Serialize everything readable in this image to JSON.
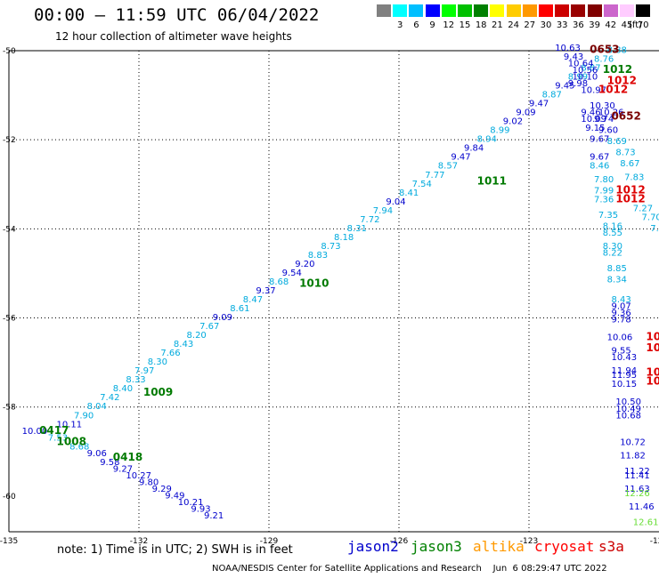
{
  "header": {
    "title": "00:00 – 11:59 UTC 06/04/2022",
    "subtitle": "12 hour collection of altimeter wave heights"
  },
  "color_scale": {
    "unit": "(ft)",
    "swatches": [
      {
        "color": "#808080",
        "label": ""
      },
      {
        "color": "#00ffff",
        "label": "3"
      },
      {
        "color": "#00bfff",
        "label": "6"
      },
      {
        "color": "#0000ff",
        "label": "9"
      },
      {
        "color": "#00ff00",
        "label": "12"
      },
      {
        "color": "#00c000",
        "label": "15"
      },
      {
        "color": "#008000",
        "label": "18"
      },
      {
        "color": "#ffff00",
        "label": "21"
      },
      {
        "color": "#ffcc00",
        "label": "24"
      },
      {
        "color": "#ff9900",
        "label": "27"
      },
      {
        "color": "#ff0000",
        "label": "30"
      },
      {
        "color": "#cc0000",
        "label": "33"
      },
      {
        "color": "#990000",
        "label": "36"
      },
      {
        "color": "#800000",
        "label": "39"
      },
      {
        "color": "#cc66cc",
        "label": "42"
      },
      {
        "color": "#ffccff",
        "label": "45"
      },
      {
        "color": "#000000",
        "label": "70"
      }
    ]
  },
  "axes": {
    "lat_labels": [
      "-50",
      "-52",
      "-54",
      "-56",
      "-58",
      "-60"
    ],
    "lon_labels": [
      "-135",
      "-132",
      "-129",
      "-126",
      "-123",
      "-120"
    ]
  },
  "note": "note: 1) Time is in UTC; 2) SWH is in feet",
  "satellite_legend": [
    {
      "name": "jason2",
      "color": "#0000cc"
    },
    {
      "name": "jason3",
      "color": "#008000"
    },
    {
      "name": "altika",
      "color": "#ff9900"
    },
    {
      "name": "cryosat",
      "color": "#ff0000"
    },
    {
      "name": "s3a",
      "color": "#cc0000"
    }
  ],
  "footer": "NOAA/NESDIS Center for Satellite Applications and Research    Jun  6 08:29:47 UTC 2022",
  "map_data": {
    "colors": {
      "cyan": "#00aadd",
      "blue": "#0000cc",
      "green": "#007a00",
      "red": "#dd0000",
      "maroon": "#7a0000",
      "lime": "#66dd33"
    },
    "wave_heights": [
      {
        "v": "10.00",
        "lon": -134.7,
        "lat": -58.6,
        "c": "blue"
      },
      {
        "v": "10.11",
        "lon": -133.9,
        "lat": -58.45,
        "c": "blue"
      },
      {
        "v": "7.90",
        "lon": -133.5,
        "lat": -58.25,
        "c": "cyan"
      },
      {
        "v": "8.04",
        "lon": -133.2,
        "lat": -58.05,
        "c": "cyan"
      },
      {
        "v": "7.42",
        "lon": -132.9,
        "lat": -57.85,
        "c": "cyan"
      },
      {
        "v": "8.40",
        "lon": -132.6,
        "lat": -57.65,
        "c": "cyan"
      },
      {
        "v": "8.33",
        "lon": -132.3,
        "lat": -57.45,
        "c": "cyan"
      },
      {
        "v": "7.97",
        "lon": -132.1,
        "lat": -57.25,
        "c": "cyan"
      },
      {
        "v": "8.30",
        "lon": -131.8,
        "lat": -57.05,
        "c": "cyan"
      },
      {
        "v": "7.66",
        "lon": -131.5,
        "lat": -56.85,
        "c": "cyan"
      },
      {
        "v": "8.43",
        "lon": -131.2,
        "lat": -56.65,
        "c": "cyan"
      },
      {
        "v": "8.20",
        "lon": -130.9,
        "lat": -56.45,
        "c": "cyan"
      },
      {
        "v": "7.67",
        "lon": -130.6,
        "lat": -56.25,
        "c": "cyan"
      },
      {
        "v": "9.09",
        "lon": -130.3,
        "lat": -56.05,
        "c": "blue"
      },
      {
        "v": "8.61",
        "lon": -129.9,
        "lat": -55.85,
        "c": "cyan"
      },
      {
        "v": "8.47",
        "lon": -129.6,
        "lat": -55.65,
        "c": "cyan"
      },
      {
        "v": "9.37",
        "lon": -129.3,
        "lat": -55.45,
        "c": "blue"
      },
      {
        "v": "8.68",
        "lon": -129.0,
        "lat": -55.25,
        "c": "cyan"
      },
      {
        "v": "9.54",
        "lon": -128.7,
        "lat": -55.05,
        "c": "blue"
      },
      {
        "v": "9.20",
        "lon": -128.4,
        "lat": -54.85,
        "c": "blue"
      },
      {
        "v": "8.83",
        "lon": -128.1,
        "lat": -54.65,
        "c": "cyan"
      },
      {
        "v": "8.73",
        "lon": -127.8,
        "lat": -54.45,
        "c": "cyan"
      },
      {
        "v": "8.18",
        "lon": -127.5,
        "lat": -54.25,
        "c": "cyan"
      },
      {
        "v": "8.31",
        "lon": -127.2,
        "lat": -54.05,
        "c": "cyan"
      },
      {
        "v": "7.72",
        "lon": -126.9,
        "lat": -53.85,
        "c": "cyan"
      },
      {
        "v": "7.94",
        "lon": -126.6,
        "lat": -53.65,
        "c": "cyan"
      },
      {
        "v": "9.04",
        "lon": -126.3,
        "lat": -53.45,
        "c": "blue"
      },
      {
        "v": "8.41",
        "lon": -126.0,
        "lat": -53.25,
        "c": "cyan"
      },
      {
        "v": "7.54",
        "lon": -125.7,
        "lat": -53.05,
        "c": "cyan"
      },
      {
        "v": "7.77",
        "lon": -125.4,
        "lat": -52.85,
        "c": "cyan"
      },
      {
        "v": "8.57",
        "lon": -125.1,
        "lat": -52.65,
        "c": "cyan"
      },
      {
        "v": "9.47",
        "lon": -124.8,
        "lat": -52.45,
        "c": "blue"
      },
      {
        "v": "9.84",
        "lon": -124.5,
        "lat": -52.25,
        "c": "blue"
      },
      {
        "v": "8.94",
        "lon": -124.2,
        "lat": -52.05,
        "c": "cyan"
      },
      {
        "v": "8.99",
        "lon": -123.9,
        "lat": -51.85,
        "c": "cyan"
      },
      {
        "v": "9.02",
        "lon": -123.6,
        "lat": -51.65,
        "c": "blue"
      },
      {
        "v": "9.09",
        "lon": -123.3,
        "lat": -51.45,
        "c": "blue"
      },
      {
        "v": "9.47",
        "lon": -123.0,
        "lat": -51.25,
        "c": "blue"
      },
      {
        "v": "8.87",
        "lon": -122.7,
        "lat": -51.05,
        "c": "cyan"
      },
      {
        "v": "9.45",
        "lon": -122.4,
        "lat": -50.85,
        "c": "blue"
      },
      {
        "v": "8.99",
        "lon": -122.1,
        "lat": -50.65,
        "c": "cyan"
      },
      {
        "v": "8.87",
        "lon": -121.8,
        "lat": -50.45,
        "c": "cyan"
      },
      {
        "v": "8.76",
        "lon": -121.5,
        "lat": -50.25,
        "c": "cyan"
      },
      {
        "v": "8.88",
        "lon": -121.2,
        "lat": -50.05,
        "c": "cyan"
      },
      {
        "v": "7.53",
        "lon": -134.1,
        "lat": -58.75,
        "c": "cyan"
      },
      {
        "v": "8.68",
        "lon": -133.6,
        "lat": -58.95,
        "c": "cyan"
      },
      {
        "v": "9.06",
        "lon": -133.2,
        "lat": -59.1,
        "c": "blue"
      },
      {
        "v": "9.58",
        "lon": -132.9,
        "lat": -59.3,
        "c": "blue"
      },
      {
        "v": "9.27",
        "lon": -132.6,
        "lat": -59.45,
        "c": "blue"
      },
      {
        "v": "10.27",
        "lon": -132.3,
        "lat": -59.6,
        "c": "blue"
      },
      {
        "v": "9.80",
        "lon": -132.0,
        "lat": -59.75,
        "c": "blue"
      },
      {
        "v": "9.29",
        "lon": -131.7,
        "lat": -59.9,
        "c": "blue"
      },
      {
        "v": "9.49",
        "lon": -131.4,
        "lat": -60.05,
        "c": "blue"
      },
      {
        "v": "10.21",
        "lon": -131.1,
        "lat": -60.2,
        "c": "blue"
      },
      {
        "v": "9.93",
        "lon": -130.8,
        "lat": -60.35,
        "c": "blue"
      },
      {
        "v": "9.21",
        "lon": -130.5,
        "lat": -60.5,
        "c": "blue"
      },
      {
        "v": "10.63",
        "lon": -122.4,
        "lat": -50.0,
        "c": "blue"
      },
      {
        "v": "9.43",
        "lon": -122.2,
        "lat": -50.2,
        "c": "blue"
      },
      {
        "v": "10.64",
        "lon": -122.1,
        "lat": -50.35,
        "c": "blue"
      },
      {
        "v": "10.56",
        "lon": -122.0,
        "lat": -50.5,
        "c": "blue"
      },
      {
        "v": "10.10",
        "lon": -122.0,
        "lat": -50.65,
        "c": "blue"
      },
      {
        "v": "9.98",
        "lon": -122.1,
        "lat": -50.8,
        "c": "blue"
      },
      {
        "v": "10.97",
        "lon": -121.8,
        "lat": -50.95,
        "c": "blue"
      },
      {
        "v": "10.30",
        "lon": -121.6,
        "lat": -51.3,
        "c": "blue"
      },
      {
        "v": "9.46",
        "lon": -121.8,
        "lat": -51.45,
        "c": "blue"
      },
      {
        "v": "10.26",
        "lon": -121.4,
        "lat": -51.45,
        "c": "blue"
      },
      {
        "v": "10.09",
        "lon": -121.8,
        "lat": -51.6,
        "c": "blue"
      },
      {
        "v": "9.74",
        "lon": -121.5,
        "lat": -51.6,
        "c": "blue"
      },
      {
        "v": "9.15",
        "lon": -121.7,
        "lat": -51.8,
        "c": "blue"
      },
      {
        "v": "9.60",
        "lon": -121.4,
        "lat": -51.85,
        "c": "blue"
      },
      {
        "v": "9.67",
        "lon": -121.6,
        "lat": -52.05,
        "c": "blue"
      },
      {
        "v": "8.69",
        "lon": -121.2,
        "lat": -52.1,
        "c": "cyan"
      },
      {
        "v": "8.73",
        "lon": -121.0,
        "lat": -52.35,
        "c": "cyan"
      },
      {
        "v": "9.67",
        "lon": -121.6,
        "lat": -52.45,
        "c": "blue"
      },
      {
        "v": "8.67",
        "lon": -120.9,
        "lat": -52.6,
        "c": "cyan"
      },
      {
        "v": "8.46",
        "lon": -121.6,
        "lat": -52.65,
        "c": "cyan"
      },
      {
        "v": "7.83",
        "lon": -120.8,
        "lat": -52.9,
        "c": "cyan"
      },
      {
        "v": "7.80",
        "lon": -121.5,
        "lat": -52.95,
        "c": "cyan"
      },
      {
        "v": "7.99",
        "lon": -121.5,
        "lat": -53.2,
        "c": "cyan"
      },
      {
        "v": "7.36",
        "lon": -121.5,
        "lat": -53.4,
        "c": "cyan"
      },
      {
        "v": "7.27",
        "lon": -120.6,
        "lat": -53.6,
        "c": "cyan"
      },
      {
        "v": "7.35",
        "lon": -121.4,
        "lat": -53.75,
        "c": "cyan"
      },
      {
        "v": "7.70",
        "lon": -120.4,
        "lat": -53.8,
        "c": "cyan"
      },
      {
        "v": "8.16",
        "lon": -121.3,
        "lat": -54.0,
        "c": "cyan"
      },
      {
        "v": "7.64",
        "lon": -120.2,
        "lat": -54.05,
        "c": "cyan"
      },
      {
        "v": "8.55",
        "lon": -121.3,
        "lat": -54.15,
        "c": "cyan"
      },
      {
        "v": "8.40",
        "lon": -120.0,
        "lat": -54.3,
        "c": "cyan"
      },
      {
        "v": "8.30",
        "lon": -121.3,
        "lat": -54.45,
        "c": "cyan"
      },
      {
        "v": "8.28",
        "lon": -119.8,
        "lat": -54.55,
        "c": "cyan"
      },
      {
        "v": "8.22",
        "lon": -121.3,
        "lat": -54.6,
        "c": "cyan"
      },
      {
        "v": "8.04",
        "lon": -119.6,
        "lat": -54.8,
        "c": "cyan"
      },
      {
        "v": "8.85",
        "lon": -121.2,
        "lat": -54.95,
        "c": "cyan"
      },
      {
        "v": "8.39",
        "lon": -119.4,
        "lat": -55.05,
        "c": "cyan"
      },
      {
        "v": "8.34",
        "lon": -121.2,
        "lat": -55.2,
        "c": "cyan"
      },
      {
        "v": "7.49",
        "lon": -119.3,
        "lat": -55.3,
        "c": "cyan"
      },
      {
        "v": "8.43",
        "lon": -121.1,
        "lat": -55.65,
        "c": "cyan"
      },
      {
        "v": "10",
        "lon": -119.2,
        "lat": -55.75,
        "c": "blue"
      },
      {
        "v": "9.07",
        "lon": -121.1,
        "lat": -55.8,
        "c": "blue"
      },
      {
        "v": "9.36",
        "lon": -121.1,
        "lat": -55.95,
        "c": "blue"
      },
      {
        "v": "9.78",
        "lon": -121.1,
        "lat": -56.1,
        "c": "blue"
      },
      {
        "v": "10.06",
        "lon": -121.2,
        "lat": -56.5,
        "c": "blue"
      },
      {
        "v": "9.55",
        "lon": -121.1,
        "lat": -56.8,
        "c": "blue"
      },
      {
        "v": "10.43",
        "lon": -121.1,
        "lat": -56.95,
        "c": "blue"
      },
      {
        "v": "11.94",
        "lon": -121.1,
        "lat": -57.25,
        "c": "blue"
      },
      {
        "v": "11.95",
        "lon": -121.1,
        "lat": -57.35,
        "c": "blue"
      },
      {
        "v": "10.15",
        "lon": -121.1,
        "lat": -57.55,
        "c": "blue"
      },
      {
        "v": "10.50",
        "lon": -121.0,
        "lat": -57.95,
        "c": "blue"
      },
      {
        "v": "10.49",
        "lon": -121.0,
        "lat": -58.1,
        "c": "blue"
      },
      {
        "v": "10.68",
        "lon": -121.0,
        "lat": -58.25,
        "c": "blue"
      },
      {
        "v": "10.72",
        "lon": -120.9,
        "lat": -58.85,
        "c": "blue"
      },
      {
        "v": "11.82",
        "lon": -120.9,
        "lat": -59.15,
        "c": "blue"
      },
      {
        "v": "11.22",
        "lon": -120.8,
        "lat": -59.5,
        "c": "blue"
      },
      {
        "v": "11.41",
        "lon": -120.8,
        "lat": -59.6,
        "c": "blue"
      },
      {
        "v": "11.63",
        "lon": -120.8,
        "lat": -59.9,
        "c": "blue"
      },
      {
        "v": "12.26",
        "lon": -120.8,
        "lat": -60.0,
        "c": "lime"
      },
      {
        "v": "11.46",
        "lon": -120.7,
        "lat": -60.3,
        "c": "blue"
      },
      {
        "v": "12.61",
        "lon": -120.6,
        "lat": -60.65,
        "c": "lime"
      }
    ],
    "station_labels": [
      {
        "v": "0417",
        "lon": -134.3,
        "lat": -58.6,
        "c": "green"
      },
      {
        "v": "1008",
        "lon": -133.9,
        "lat": -58.85,
        "c": "green"
      },
      {
        "v": "0418",
        "lon": -132.6,
        "lat": -59.2,
        "c": "green"
      },
      {
        "v": "1009",
        "lon": -131.9,
        "lat": -57.75,
        "c": "green"
      },
      {
        "v": "1010",
        "lon": -128.3,
        "lat": -55.3,
        "c": "green"
      },
      {
        "v": "1011",
        "lon": -124.2,
        "lat": -53.0,
        "c": "green"
      },
      {
        "v": "0653",
        "lon": -121.6,
        "lat": -50.05,
        "c": "maroon"
      },
      {
        "v": "1012",
        "lon": -121.3,
        "lat": -50.5,
        "c": "green"
      },
      {
        "v": "1012",
        "lon": -121.2,
        "lat": -50.75,
        "c": "red"
      },
      {
        "v": "1012",
        "lon": -121.4,
        "lat": -50.95,
        "c": "red"
      },
      {
        "v": "0652",
        "lon": -121.1,
        "lat": -51.55,
        "c": "maroon"
      },
      {
        "v": "1012",
        "lon": -121.0,
        "lat": -53.2,
        "c": "red"
      },
      {
        "v": "1012",
        "lon": -121.0,
        "lat": -53.4,
        "c": "red"
      },
      {
        "v": "1011",
        "lon": -120.3,
        "lat": -56.5,
        "c": "red"
      },
      {
        "v": "1011",
        "lon": -120.3,
        "lat": -56.75,
        "c": "red"
      },
      {
        "v": "1011",
        "lon": -120.3,
        "lat": -57.3,
        "c": "red"
      },
      {
        "v": "1011",
        "lon": -120.3,
        "lat": -57.5,
        "c": "red"
      }
    ]
  }
}
